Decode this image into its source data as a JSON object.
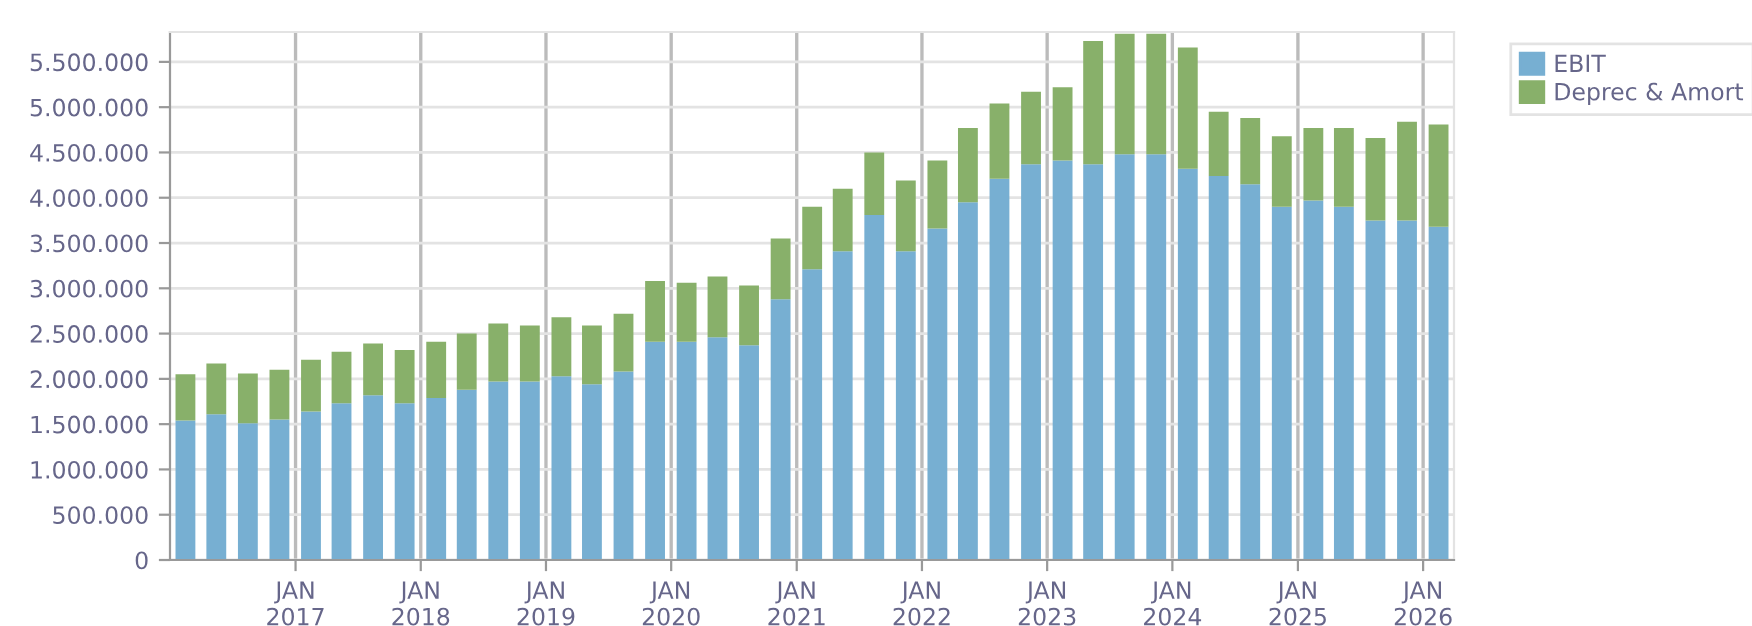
{
  "chart_data": {
    "type": "bar",
    "stacked": true,
    "x": [
      "2016-02-15",
      "2016-05-15",
      "2016-08-15",
      "2016-11-15",
      "2017-02-15",
      "2017-05-15",
      "2017-08-15",
      "2017-11-15",
      "2018-02-15",
      "2018-05-15",
      "2018-08-15",
      "2018-11-15",
      "2019-02-15",
      "2019-05-15",
      "2019-08-15",
      "2019-11-15",
      "2020-02-15",
      "2020-05-15",
      "2020-08-15",
      "2020-11-15",
      "2021-02-15",
      "2021-05-15",
      "2021-08-15",
      "2021-11-15",
      "2022-02-15",
      "2022-05-15",
      "2022-08-15",
      "2022-11-15",
      "2023-02-15",
      "2023-05-15",
      "2023-08-15",
      "2023-11-15",
      "2024-02-15",
      "2024-05-15",
      "2024-08-15",
      "2024-11-15",
      "2025-02-15",
      "2025-05-15",
      "2025-08-15",
      "2025-11-15",
      "2026-02-15"
    ],
    "series": [
      {
        "name": "EBIT",
        "color": "#77afd2",
        "values": [
          1540000,
          1610000,
          1510000,
          1550000,
          1640000,
          1730000,
          1820000,
          1730000,
          1790000,
          1880000,
          1970000,
          1970000,
          2030000,
          1940000,
          2080000,
          2410000,
          2410000,
          2460000,
          2370000,
          2880000,
          3210000,
          3410000,
          3810000,
          3410000,
          3660000,
          3950000,
          4210000,
          4370000,
          4410000,
          4370000,
          4480000,
          4480000,
          4320000,
          4240000,
          4150000,
          3900000,
          3970000,
          3900000,
          3750000,
          3750000,
          3680000
        ]
      },
      {
        "name": "Deprec & Amort",
        "color": "#88b06a",
        "values": [
          510000,
          560000,
          550000,
          550000,
          570000,
          570000,
          570000,
          590000,
          620000,
          620000,
          640000,
          620000,
          650000,
          650000,
          640000,
          670000,
          650000,
          670000,
          660000,
          670000,
          690000,
          690000,
          690000,
          780000,
          750000,
          820000,
          830000,
          800000,
          810000,
          1360000,
          1330000,
          1330000,
          1340000,
          710000,
          730000,
          780000,
          800000,
          870000,
          910000,
          1090000,
          1130000
        ]
      }
    ],
    "xlim": [
      "2016-01-01",
      "2026-04-01"
    ],
    "xticks": [
      {
        "value": "2017-01-01",
        "label": "JAN\n2017"
      },
      {
        "value": "2018-01-01",
        "label": "JAN\n2018"
      },
      {
        "value": "2019-01-01",
        "label": "JAN\n2019"
      },
      {
        "value": "2020-01-01",
        "label": "JAN\n2020"
      },
      {
        "value": "2021-01-01",
        "label": "JAN\n2021"
      },
      {
        "value": "2022-01-01",
        "label": "JAN\n2022"
      },
      {
        "value": "2023-01-01",
        "label": "JAN\n2023"
      },
      {
        "value": "2024-01-01",
        "label": "JAN\n2024"
      },
      {
        "value": "2025-01-01",
        "label": "JAN\n2025"
      },
      {
        "value": "2026-01-01",
        "label": "JAN\n2026"
      }
    ],
    "ylim": [
      0,
      5830000
    ],
    "yticks": [
      0,
      {
        "value": 500000,
        "label": "500.000"
      },
      {
        "value": 1000000,
        "label": "1.000.000"
      },
      {
        "value": 1500000,
        "label": "1.500.000"
      },
      {
        "value": 2000000,
        "label": "2.000.000"
      },
      {
        "value": 2500000,
        "label": "2.500.000"
      },
      {
        "value": 3000000,
        "label": "3.000.000"
      },
      {
        "value": 3500000,
        "label": "3.500.000"
      },
      {
        "value": 4000000,
        "label": "4.000.000"
      },
      {
        "value": 4500000,
        "label": "4.500.000"
      },
      {
        "value": 5000000,
        "label": "5.000.000"
      },
      {
        "value": 5500000,
        "label": "5.500.000"
      }
    ],
    "grid": true,
    "legend": "top right"
  }
}
